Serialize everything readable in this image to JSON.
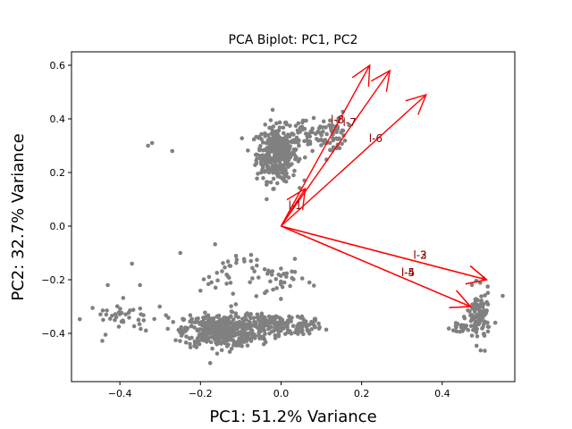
{
  "chart_data": {
    "type": "scatter",
    "title": "PCA Biplot: PC1, PC2",
    "xlabel": "PC1: 51.2% Variance",
    "ylabel": "PC2: 32.7% Variance",
    "xlim": [
      -0.52,
      0.58
    ],
    "ylim": [
      -0.58,
      0.65
    ],
    "xticks": [
      -0.4,
      -0.2,
      0.0,
      0.2,
      0.4
    ],
    "yticks": [
      -0.4,
      -0.2,
      0.0,
      0.2,
      0.4,
      0.6
    ],
    "xtick_labels": [
      "−0.4",
      "−0.2",
      "0.0",
      "0.2",
      "0.4"
    ],
    "ytick_labels": [
      "−0.4",
      "−0.2",
      "0.0",
      "0.2",
      "0.4",
      "0.6"
    ],
    "grid": false,
    "point_color": "#808080",
    "arrow_color": "#ff0000",
    "label_color": "#8b0000",
    "clusters": [
      {
        "center": [
          -0.01,
          0.27
        ],
        "spread": [
          0.025,
          0.05
        ],
        "count": 380
      },
      {
        "center": [
          0.07,
          0.33
        ],
        "spread": [
          0.035,
          0.03
        ],
        "count": 60
      },
      {
        "center": [
          0.14,
          0.35
        ],
        "spread": [
          0.012,
          0.04
        ],
        "count": 40
      },
      {
        "center": [
          -0.15,
          -0.39
        ],
        "spread": [
          0.045,
          0.03
        ],
        "count": 450
      },
      {
        "center": [
          -0.02,
          -0.37
        ],
        "spread": [
          0.04,
          0.02
        ],
        "count": 150
      },
      {
        "center": [
          0.06,
          -0.37
        ],
        "spread": [
          0.02,
          0.015
        ],
        "count": 40
      },
      {
        "center": [
          -0.38,
          -0.34
        ],
        "spread": [
          0.05,
          0.03
        ],
        "count": 45
      },
      {
        "center": [
          -0.12,
          -0.18
        ],
        "spread": [
          0.04,
          0.05
        ],
        "count": 40
      },
      {
        "center": [
          0.0,
          -0.2
        ],
        "spread": [
          0.03,
          0.03
        ],
        "count": 30
      },
      {
        "center": [
          0.49,
          -0.34
        ],
        "spread": [
          0.014,
          0.05
        ],
        "count": 110
      },
      {
        "center": [
          0.45,
          -0.38
        ],
        "spread": [
          0.015,
          0.01
        ],
        "count": 25
      }
    ],
    "scatter_points": [
      {
        "x": -0.32,
        "y": 0.31
      },
      {
        "x": -0.27,
        "y": 0.28
      },
      {
        "x": -0.33,
        "y": 0.3
      },
      {
        "x": -0.25,
        "y": -0.1
      },
      {
        "x": -0.37,
        "y": -0.14
      },
      {
        "x": -0.43,
        "y": -0.22
      },
      {
        "x": -0.35,
        "y": -0.22
      },
      {
        "x": 0.55,
        "y": -0.26
      }
    ],
    "loadings": [
      {
        "label": "l-1",
        "x": 0.06,
        "y": 0.14
      },
      {
        "label": "l-2",
        "x": 0.51,
        "y": -0.2
      },
      {
        "label": "l-3",
        "x": 0.51,
        "y": -0.2
      },
      {
        "label": "l-4",
        "x": 0.47,
        "y": -0.3
      },
      {
        "label": "l-5",
        "x": 0.47,
        "y": -0.3
      },
      {
        "label": "l-6",
        "x": 0.36,
        "y": 0.49
      },
      {
        "label": "l-7",
        "x": 0.27,
        "y": 0.58
      },
      {
        "label": "l-8",
        "x": 0.22,
        "y": 0.6
      }
    ],
    "loading_labels": [
      {
        "text": "l-1",
        "x": 0.035,
        "y": 0.075
      },
      {
        "text": "l-2",
        "x": 0.345,
        "y": -0.11
      },
      {
        "text": "l-3",
        "x": 0.345,
        "y": -0.11
      },
      {
        "text": "l-4",
        "x": 0.315,
        "y": -0.175
      },
      {
        "text": "l-5",
        "x": 0.315,
        "y": -0.175
      },
      {
        "text": "l-6",
        "x": 0.235,
        "y": 0.325
      },
      {
        "text": "l-7",
        "x": 0.17,
        "y": 0.385
      },
      {
        "text": "l-8",
        "x": 0.14,
        "y": 0.395
      }
    ]
  }
}
